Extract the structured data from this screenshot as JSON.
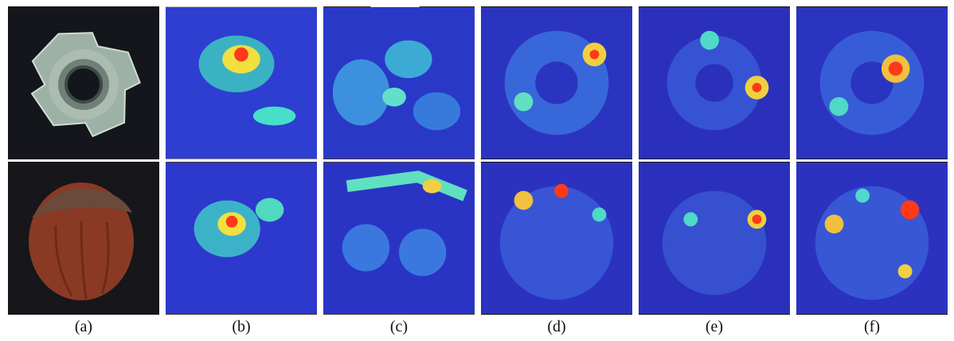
{
  "figure": {
    "captions": [
      "(a)",
      "(b)",
      "(c)",
      "(d)",
      "(e)",
      "(f)"
    ],
    "rows": [
      "metal-nut",
      "hazelnut"
    ],
    "colors": {
      "dark_bg": "#14141c",
      "metal": "#aebdb0",
      "hazel": "#8a3a24",
      "heat_blue": "#2a3acc",
      "heat_hot": "#ff3a1a"
    }
  }
}
